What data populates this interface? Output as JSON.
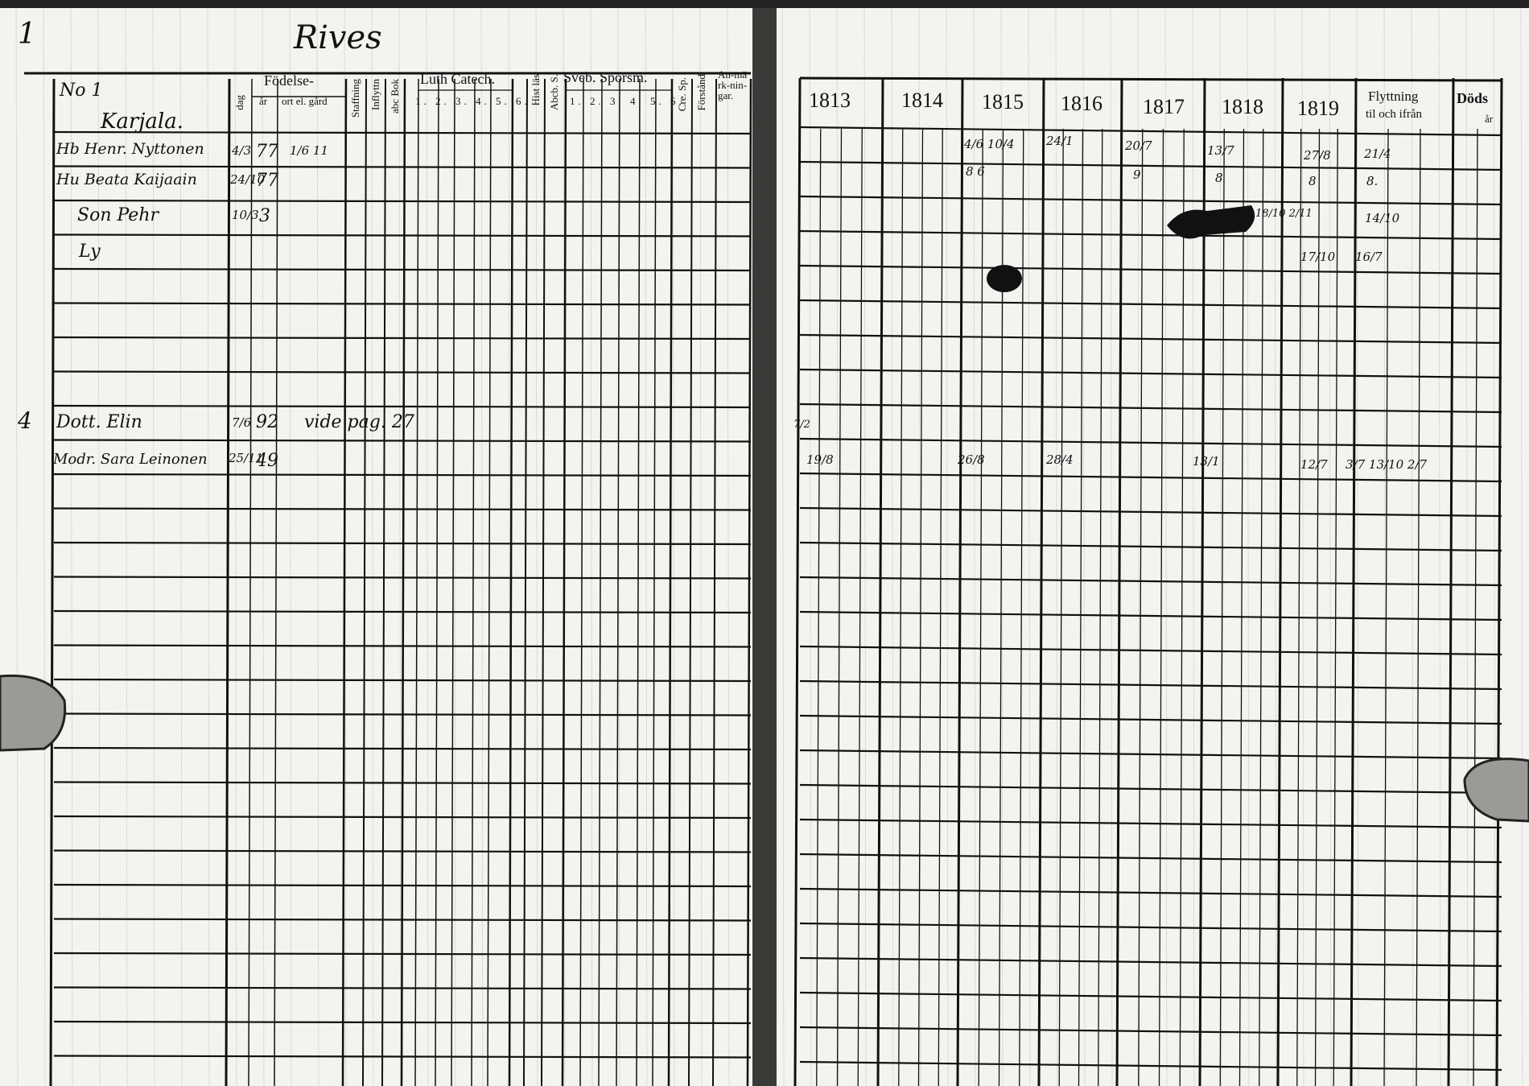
{
  "page_number": "1",
  "village": "Rives",
  "left_page": {
    "household_no": "No 1",
    "farm": "Karjala.",
    "headers": {
      "birth": "Födelse-",
      "birth_day": "dag",
      "birth_year": "år",
      "birth_place": "ort el. gård",
      "col_staffning": "Staffning",
      "col_inflyttn": "Inflyttn",
      "col_abc": "abc Bok",
      "luth": "Luth Catech.",
      "luth_nums": "1. 2. 3. 4. 5. 6.",
      "hist": "Hist läs",
      "abcb": "Abcb. S.",
      "sveb": "Sveb. Spörsm.",
      "sveb_nums": "1. 2. 3. 4. 5. 6.",
      "cre": "Cre. Sp.",
      "forstand": "Förstånd",
      "anm": "An-märk-nin-gar."
    },
    "rows": [
      {
        "name": "Hb Henr. Nyttonen",
        "day": "4/3",
        "year": "77",
        "place": "1/6  11"
      },
      {
        "name": "Hu Beata Kaijaain",
        "day": "24/10",
        "year": "77",
        "place": ""
      },
      {
        "name": "Son Pehr",
        "day": "10/3",
        "year": "3",
        "place": ""
      },
      {
        "name": "Ly",
        "day": "",
        "year": "",
        "place": ""
      },
      {
        "margin": "4",
        "name": "Dott. Elin",
        "day": "7/6",
        "year": "92",
        "place": "vide pag. 27"
      },
      {
        "name": "Modr. Sara Leinonen",
        "day": "25/11",
        "year": "49",
        "place": ""
      }
    ]
  },
  "right_page": {
    "years": [
      "1813",
      "1814",
      "1815",
      "1816",
      "1817",
      "1818",
      "1819"
    ],
    "moving_header": "Flyttning",
    "moving_sub": "til och ifrån",
    "death_header": "Döds",
    "death_sub": "år",
    "entries": {
      "row1": {
        "1815": "4/6  10/4",
        "1816": "24/1",
        "1817": "20/7",
        "1818": "13/7",
        "1819": "27/8",
        "moving": "21/4"
      },
      "row2": {
        "1815": "8  6",
        "1817": "9",
        "1818": "8",
        "1819": "8",
        "moving": "8."
      },
      "row3": {
        "1818": "18/10  2/11",
        "moving": "14/10"
      },
      "row4": {
        "1819": "17/10",
        "moving": "16/7"
      },
      "row_elin": {
        "1813": "7/2"
      },
      "row_sara": {
        "1813": "19/8",
        "1815": "26/8",
        "1816": "28/4",
        "1818": "13/1",
        "1819": "12/7",
        "moving": "3/7  13/10  2/7"
      }
    }
  },
  "colors": {
    "paper": "#f3f3f0",
    "ink": "#111111"
  }
}
